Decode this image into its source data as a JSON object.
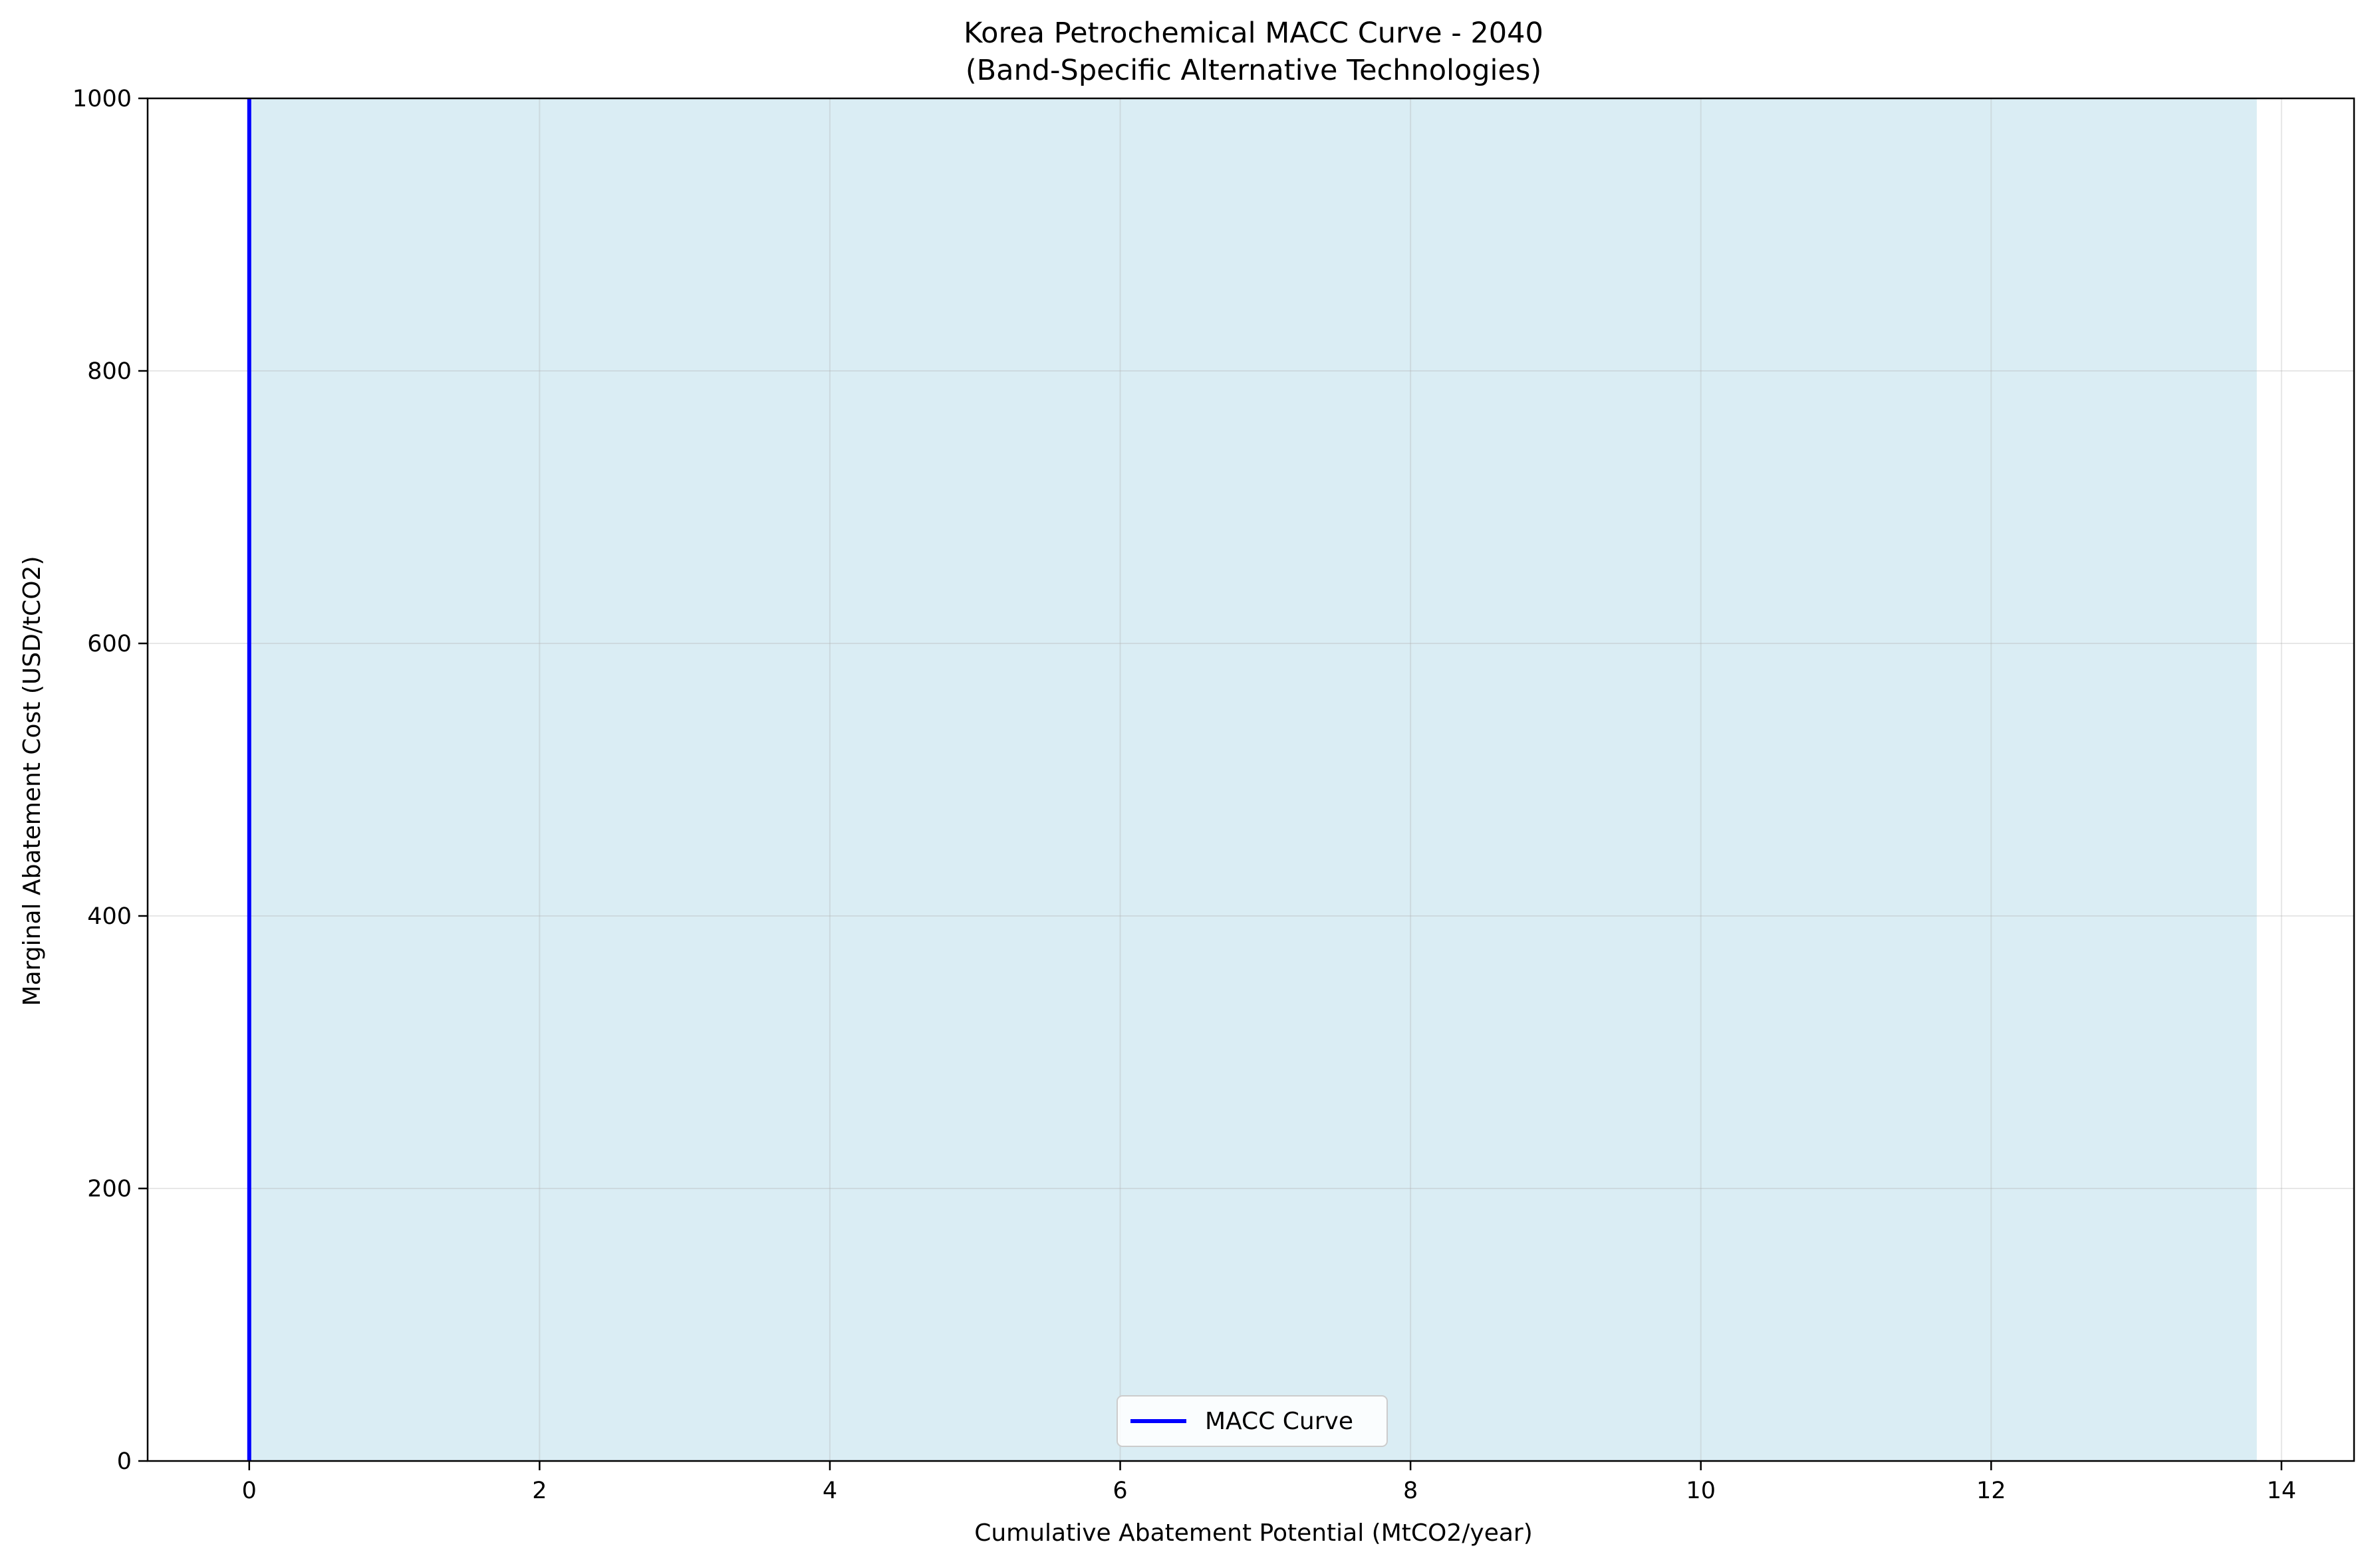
{
  "chart_data": {
    "type": "area",
    "title": "Korea Petrochemical MACC Curve - 2040",
    "subtitle": "(Band-Specific Alternative Technologies)",
    "xlabel": "Cumulative Abatement Potential (MtCO2/year)",
    "ylabel": "Marginal Abatement Cost (USD/tCO2)",
    "xlim": [
      -0.7,
      14.5
    ],
    "ylim": [
      0,
      1000
    ],
    "xticks": [
      "0",
      "2",
      "4",
      "6",
      "8",
      "10",
      "12",
      "14"
    ],
    "yticks": [
      "0",
      "200",
      "400",
      "600",
      "800",
      "1000"
    ],
    "grid": true,
    "legend": {
      "placement": "lower-center",
      "entries": [
        "MACC Curve"
      ]
    },
    "series": [
      {
        "name": "MACC Curve",
        "color": "#0000ff",
        "x": [
          0,
          0
        ],
        "y": [
          0,
          1000
        ]
      }
    ],
    "fill_region": {
      "x": [
        0,
        13.83
      ],
      "y": [
        0,
        1000
      ],
      "color": "#add8e6"
    }
  }
}
